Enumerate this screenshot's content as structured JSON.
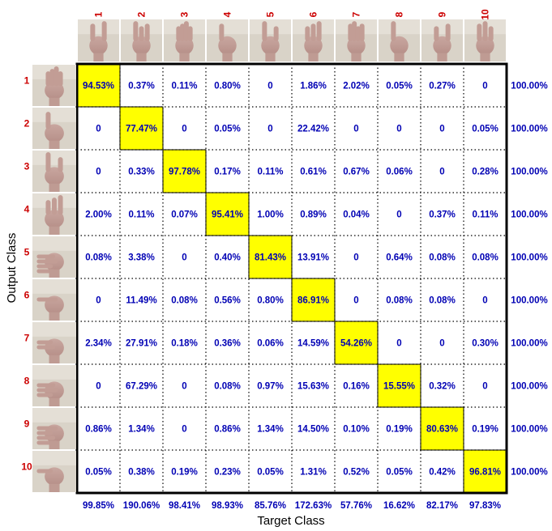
{
  "chart_data": {
    "type": "heatmap",
    "xlabel": "Target Class",
    "ylabel": "Output Class",
    "classes": [
      "1",
      "2",
      "3",
      "4",
      "5",
      "6",
      "7",
      "8",
      "9",
      "10"
    ],
    "matrix": [
      [
        "94.53%",
        "0.37%",
        "0.11%",
        "0.80%",
        "0",
        "1.86%",
        "2.02%",
        "0.05%",
        "0.27%",
        "0"
      ],
      [
        "0",
        "77.47%",
        "0",
        "0.05%",
        "0",
        "22.42%",
        "0",
        "0",
        "0",
        "0.05%"
      ],
      [
        "0",
        "0.33%",
        "97.78%",
        "0.17%",
        "0.11%",
        "0.61%",
        "0.67%",
        "0.06%",
        "0",
        "0.28%"
      ],
      [
        "2.00%",
        "0.11%",
        "0.07%",
        "95.41%",
        "1.00%",
        "0.89%",
        "0.04%",
        "0",
        "0.37%",
        "0.11%"
      ],
      [
        "0.08%",
        "3.38%",
        "0",
        "0.40%",
        "81.43%",
        "13.91%",
        "0",
        "0.64%",
        "0.08%",
        "0.08%"
      ],
      [
        "0",
        "11.49%",
        "0.08%",
        "0.56%",
        "0.80%",
        "86.91%",
        "0",
        "0.08%",
        "0.08%",
        "0"
      ],
      [
        "2.34%",
        "27.91%",
        "0.18%",
        "0.36%",
        "0.06%",
        "14.59%",
        "54.26%",
        "0",
        "0",
        "0.30%"
      ],
      [
        "0",
        "67.29%",
        "0",
        "0.08%",
        "0.97%",
        "15.63%",
        "0.16%",
        "15.55%",
        "0.32%",
        "0"
      ],
      [
        "0.86%",
        "1.34%",
        "0",
        "0.86%",
        "1.34%",
        "14.50%",
        "0.10%",
        "0.19%",
        "80.63%",
        "0.19%"
      ],
      [
        "0.05%",
        "0.38%",
        "0.19%",
        "0.23%",
        "0.05%",
        "1.31%",
        "0.52%",
        "0.05%",
        "0.42%",
        "96.81%"
      ]
    ],
    "row_totals": [
      "100.00%",
      "100.00%",
      "100.00%",
      "100.00%",
      "100.00%",
      "100.00%",
      "100.00%",
      "100.00%",
      "100.00%",
      "100.00%"
    ],
    "column_totals": [
      "99.85%",
      "190.06%",
      "98.41%",
      "98.93%",
      "85.76%",
      "172.63%",
      "57.76%",
      "16.62%",
      "82.17%",
      "97.83%"
    ],
    "grid": "dotted",
    "colors": {
      "diagonal_fill": "#ffff00",
      "cell_text": "#0000b4",
      "class_label": "#cc0000",
      "border": "#000000"
    }
  }
}
